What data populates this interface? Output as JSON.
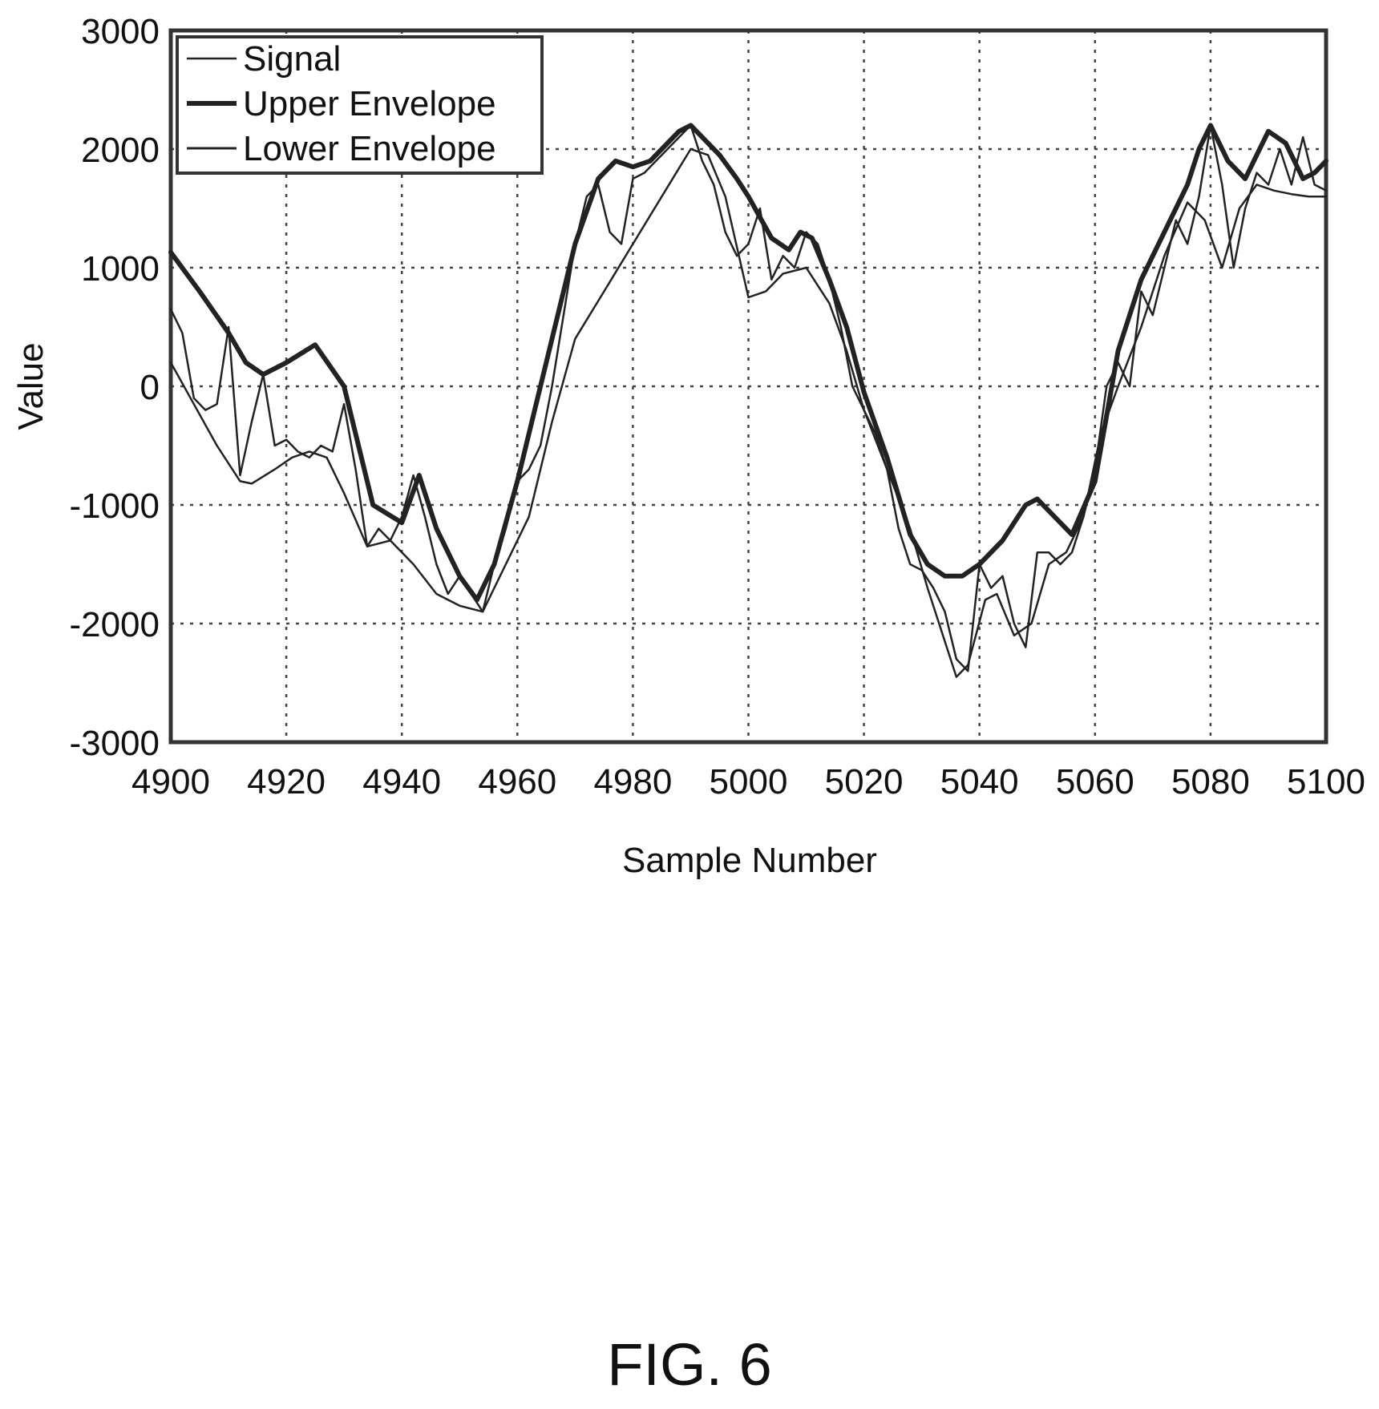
{
  "figure": {
    "caption": "FIG. 6"
  },
  "chart_data": {
    "type": "line",
    "title": "",
    "xlabel": "Sample Number",
    "ylabel": "Value",
    "xlim": [
      4900,
      5100
    ],
    "ylim": [
      -3000,
      3000
    ],
    "xticks": [
      4900,
      4920,
      4940,
      4960,
      4980,
      5000,
      5020,
      5040,
      5060,
      5080,
      5100
    ],
    "yticks": [
      3000,
      2000,
      1000,
      0,
      -1000,
      -2000,
      -3000
    ],
    "grid": true,
    "legend_position": "top-left",
    "series": [
      {
        "name": "Signal",
        "style": "thin",
        "x": [
          4900,
          4902,
          4904,
          4906,
          4908,
          4910,
          4912,
          4914,
          4916,
          4918,
          4920,
          4922,
          4924,
          4926,
          4928,
          4930,
          4932,
          4934,
          4936,
          4938,
          4940,
          4942,
          4944,
          4946,
          4948,
          4950,
          4952,
          4954,
          4956,
          4958,
          4960,
          4962,
          4964,
          4966,
          4968,
          4970,
          4972,
          4974,
          4976,
          4978,
          4980,
          4982,
          4984,
          4986,
          4988,
          4990,
          4992,
          4994,
          4996,
          4998,
          5000,
          5002,
          5004,
          5006,
          5008,
          5010,
          5012,
          5014,
          5016,
          5018,
          5020,
          5022,
          5024,
          5026,
          5028,
          5030,
          5032,
          5034,
          5036,
          5038,
          5040,
          5042,
          5044,
          5046,
          5048,
          5050,
          5052,
          5054,
          5056,
          5058,
          5060,
          5062,
          5064,
          5066,
          5068,
          5070,
          5072,
          5074,
          5076,
          5078,
          5080,
          5082,
          5084,
          5086,
          5088,
          5090,
          5092,
          5094,
          5096,
          5098,
          5100
        ],
        "values": [
          650,
          450,
          -100,
          -200,
          -150,
          500,
          -750,
          -300,
          100,
          -500,
          -450,
          -550,
          -600,
          -500,
          -550,
          -150,
          -700,
          -1350,
          -1200,
          -1300,
          -1100,
          -750,
          -1100,
          -1500,
          -1750,
          -1600,
          -1750,
          -1900,
          -1500,
          -1200,
          -800,
          -700,
          -500,
          0,
          600,
          1200,
          1600,
          1700,
          1300,
          1200,
          1750,
          1800,
          1900,
          2000,
          2100,
          2200,
          1900,
          1700,
          1300,
          1100,
          1200,
          1500,
          900,
          1100,
          1000,
          1300,
          1200,
          900,
          500,
          0,
          -200,
          -400,
          -700,
          -1200,
          -1500,
          -1550,
          -1700,
          -1900,
          -2300,
          -2400,
          -1500,
          -1700,
          -1600,
          -2000,
          -2200,
          -1400,
          -1400,
          -1500,
          -1400,
          -1100,
          -700,
          0,
          200,
          0,
          800,
          600,
          1000,
          1400,
          1200,
          1600,
          2200,
          1700,
          1000,
          1500,
          1800,
          1700,
          2000,
          1700,
          2100,
          1700,
          1650
        ]
      },
      {
        "name": "Upper Envelope",
        "style": "thick",
        "x": [
          4900,
          4905,
          4910,
          4913,
          4916,
          4920,
          4925,
          4930,
          4935,
          4940,
          4943,
          4946,
          4950,
          4953,
          4956,
          4960,
          4965,
          4970,
          4974,
          4977,
          4980,
          4983,
          4986,
          4988,
          4990,
          4992,
          4995,
          4998,
          5000,
          5004,
          5007,
          5009,
          5011,
          5014,
          5017,
          5020,
          5024,
          5028,
          5031,
          5034,
          5037,
          5040,
          5044,
          5048,
          5050,
          5053,
          5056,
          5060,
          5064,
          5068,
          5072,
          5076,
          5078,
          5080,
          5083,
          5086,
          5088,
          5090,
          5093,
          5096,
          5098,
          5100
        ],
        "values": [
          1130,
          800,
          450,
          200,
          100,
          200,
          350,
          0,
          -1000,
          -1150,
          -750,
          -1200,
          -1600,
          -1800,
          -1500,
          -800,
          200,
          1200,
          1750,
          1900,
          1850,
          1900,
          2050,
          2150,
          2200,
          2100,
          1950,
          1750,
          1600,
          1250,
          1150,
          1300,
          1250,
          900,
          500,
          -50,
          -600,
          -1250,
          -1500,
          -1600,
          -1600,
          -1500,
          -1300,
          -1000,
          -950,
          -1100,
          -1250,
          -800,
          300,
          900,
          1300,
          1700,
          2000,
          2200,
          1900,
          1750,
          1950,
          2150,
          2050,
          1750,
          1800,
          1900
        ]
      },
      {
        "name": "Lower Envelope",
        "style": "thin",
        "x": [
          4900,
          4904,
          4908,
          4912,
          4914,
          4918,
          4921,
          4924,
          4927,
          4930,
          4934,
          4938,
          4942,
          4946,
          4950,
          4954,
          4958,
          4962,
          4966,
          4970,
          4975,
          4980,
          4985,
          4990,
          4993,
          4996,
          5000,
          5003,
          5006,
          5010,
          5014,
          5017,
          5020,
          5024,
          5028,
          5031,
          5034,
          5036,
          5038,
          5041,
          5043,
          5046,
          5049,
          5052,
          5055,
          5058,
          5061,
          5064,
          5068,
          5072,
          5076,
          5079,
          5082,
          5085,
          5088,
          5091,
          5094,
          5097,
          5100
        ],
        "values": [
          200,
          -150,
          -500,
          -800,
          -820,
          -700,
          -600,
          -550,
          -600,
          -900,
          -1350,
          -1300,
          -1500,
          -1750,
          -1850,
          -1900,
          -1500,
          -1100,
          -300,
          400,
          800,
          1200,
          1600,
          2000,
          1950,
          1600,
          750,
          800,
          950,
          1000,
          700,
          300,
          -200,
          -700,
          -1200,
          -1700,
          -2150,
          -2450,
          -2350,
          -1800,
          -1750,
          -2100,
          -2000,
          -1500,
          -1400,
          -1100,
          -400,
          0,
          500,
          1100,
          1550,
          1400,
          1000,
          1500,
          1700,
          1650,
          1620,
          1600,
          1600
        ]
      }
    ]
  }
}
